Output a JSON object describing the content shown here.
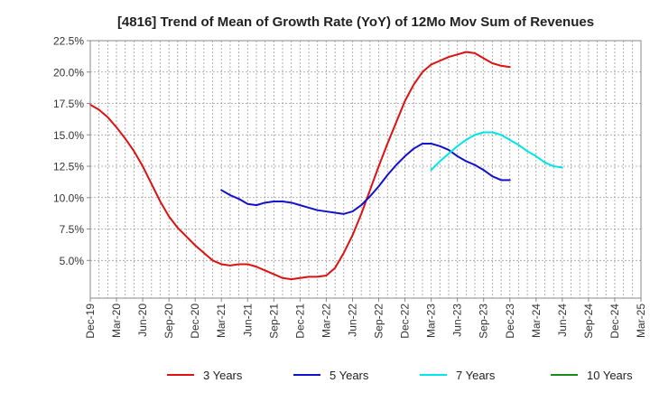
{
  "chart_data": {
    "type": "line",
    "title": "[4816]  Trend of Mean of Growth Rate (YoY) of 12Mo Mov Sum of Revenues",
    "xlabel": "",
    "ylabel": "",
    "ylim": [
      2.0,
      22.5
    ],
    "y_ticks": [
      5.0,
      7.5,
      10.0,
      12.5,
      15.0,
      17.5,
      20.0,
      22.5
    ],
    "y_tick_labels": [
      "5.0%",
      "7.5%",
      "10.0%",
      "12.5%",
      "15.0%",
      "17.5%",
      "20.0%",
      "22.5%"
    ],
    "x_ticks": [
      "Dec-19",
      "Mar-20",
      "Jun-20",
      "Sep-20",
      "Dec-20",
      "Mar-21",
      "Jun-21",
      "Sep-21",
      "Dec-21",
      "Mar-22",
      "Jun-22",
      "Sep-22",
      "Dec-22",
      "Mar-23",
      "Jun-23",
      "Sep-23",
      "Dec-23",
      "Mar-24",
      "Jun-24",
      "Sep-24",
      "Dec-24",
      "Mar-25"
    ],
    "grid": true,
    "legend_position": "bottom",
    "series": [
      {
        "name": "3 Years",
        "color": "#dd1111",
        "start_index": 0,
        "values": [
          17.4,
          17.0,
          16.4,
          15.6,
          14.7,
          13.7,
          12.5,
          11.1,
          9.7,
          8.5,
          7.6,
          6.9,
          6.2,
          5.6,
          5.0,
          4.7,
          4.6,
          4.7,
          4.7,
          4.5,
          4.2,
          3.9,
          3.6,
          3.5,
          3.6,
          3.7,
          3.7,
          3.8,
          4.4,
          5.6,
          7.0,
          8.7,
          10.6,
          12.5,
          14.3,
          16.0,
          17.7,
          19.0,
          20.0,
          20.6,
          20.9,
          21.2,
          21.4,
          21.6,
          21.5,
          21.1,
          20.7,
          20.5,
          20.4
        ]
      },
      {
        "name": "5 Years",
        "color": "#1111cc",
        "start_index": 15,
        "values": [
          10.6,
          10.2,
          9.9,
          9.5,
          9.4,
          9.6,
          9.7,
          9.7,
          9.6,
          9.4,
          9.2,
          9.0,
          8.9,
          8.8,
          8.7,
          8.9,
          9.4,
          10.1,
          10.9,
          11.8,
          12.6,
          13.3,
          13.9,
          14.3,
          14.3,
          14.1,
          13.8,
          13.3,
          12.9,
          12.6,
          12.2,
          11.7,
          11.4,
          11.4
        ]
      },
      {
        "name": "7 Years",
        "color": "#00e5e5",
        "start_index": 39,
        "values": [
          12.2,
          12.9,
          13.5,
          14.1,
          14.6,
          15.0,
          15.2,
          15.2,
          15.0,
          14.6,
          14.2,
          13.7,
          13.3,
          12.8,
          12.5,
          12.4
        ]
      },
      {
        "name": "10 Years",
        "color": "#1a8c1a",
        "start_index": 0,
        "values": []
      }
    ]
  }
}
